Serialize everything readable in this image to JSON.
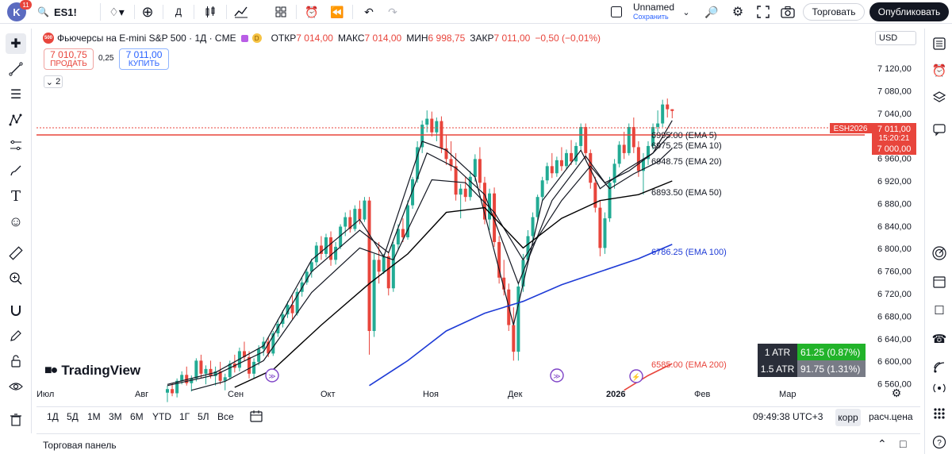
{
  "topbar": {
    "avatar_letter": "K",
    "avatar_badge": "11",
    "symbol": "ES1!",
    "interval": "Д",
    "unnamed": "Unnamed",
    "save": "Сохранить",
    "trade": "Торговать",
    "publish": "Опубликовать"
  },
  "legend": {
    "logo": "500",
    "title": "Фьючерсы на E-mini S&P 500 · 1Д · CME",
    "badge": "D",
    "open_label": "ОТКР",
    "open": "7 014,00",
    "high_label": "МАКС",
    "high": "7 014,00",
    "low_label": "МИН",
    "low": "6 998,75",
    "close_label": "ЗАКР",
    "close": "7 011,00",
    "change": "−0,50 (−0,01%)"
  },
  "order": {
    "sell_price": "7 010,75",
    "sell_label": "ПРОДАТЬ",
    "spread": "0,25",
    "buy_price": "7 011,00",
    "buy_label": "КУПИТЬ"
  },
  "collapse_count": "2",
  "currency": "USD",
  "price_axis": [
    "7 120,00",
    "7 080,00",
    "7 040,00",
    "7 000,00",
    "6 960,00",
    "6 920,00",
    "6 880,00",
    "6 840,00",
    "6 800,00",
    "6 760,00",
    "6 720,00",
    "6 680,00",
    "6 640,00",
    "6 600,00",
    "6 560,00"
  ],
  "time_axis": [
    "Июл",
    "Авг",
    "Сен",
    "Окт",
    "Ноя",
    "Дек",
    "2026",
    "Фев",
    "Мар"
  ],
  "price_tag": {
    "symbol": "ESH2026",
    "price": "7 011,00",
    "countdown": "15:20:21",
    "line_price": "7 000,00"
  },
  "ema_labels": [
    {
      "text": "6995.00 (EMA 5)",
      "color": "#131722"
    },
    {
      "text": "6975.25 (EMA 10)",
      "color": "#131722"
    },
    {
      "text": "6948.75 (EMA 20)",
      "color": "#131722"
    },
    {
      "text": "6893.50 (EMA 50)",
      "color": "#131722"
    },
    {
      "text": "6786.25 (EMA 100)",
      "color": "#1e3bd6"
    },
    {
      "text": "6585.00 (EMA 200)",
      "color": "#e8453c"
    }
  ],
  "atr": [
    {
      "label": "1 ATR",
      "value": "61.25 (0.87%)",
      "bg": "#22b32a"
    },
    {
      "label": "1.5 ATR",
      "value": "91.75 (1.31%)",
      "bg": "#787b86"
    }
  ],
  "brand": "TradingView",
  "timeframes": [
    "1Д",
    "5Д",
    "1М",
    "3М",
    "6М",
    "YTD",
    "1Г",
    "5Л",
    "Все"
  ],
  "clock": "09:49:38 UTC+3",
  "korr": "корр",
  "scale_mode": "расч.цена",
  "panel_title": "Торговая панель",
  "colors": {
    "up": "#22ab94",
    "down": "#e8453c",
    "ema100": "#1e3bd6",
    "ema200": "#e8453c"
  },
  "chart_data": {
    "type": "candlestick",
    "y_range": [
      6545,
      7150
    ],
    "candles": [
      {
        "o": 6536,
        "h": 6548,
        "l": 6520,
        "c": 6542
      },
      {
        "o": 6542,
        "h": 6552,
        "l": 6530,
        "c": 6535
      },
      {
        "o": 6535,
        "h": 6560,
        "l": 6528,
        "c": 6556
      },
      {
        "o": 6556,
        "h": 6572,
        "l": 6550,
        "c": 6566
      },
      {
        "o": 6566,
        "h": 6580,
        "l": 6548,
        "c": 6552
      },
      {
        "o": 6552,
        "h": 6565,
        "l": 6538,
        "c": 6560
      },
      {
        "o": 6560,
        "h": 6594,
        "l": 6555,
        "c": 6590
      },
      {
        "o": 6590,
        "h": 6600,
        "l": 6560,
        "c": 6568
      },
      {
        "o": 6568,
        "h": 6582,
        "l": 6550,
        "c": 6576
      },
      {
        "o": 6576,
        "h": 6590,
        "l": 6560,
        "c": 6564
      },
      {
        "o": 6564,
        "h": 6580,
        "l": 6548,
        "c": 6572
      },
      {
        "o": 6572,
        "h": 6588,
        "l": 6550,
        "c": 6556
      },
      {
        "o": 6556,
        "h": 6568,
        "l": 6540,
        "c": 6562
      },
      {
        "o": 6562,
        "h": 6590,
        "l": 6558,
        "c": 6585
      },
      {
        "o": 6585,
        "h": 6600,
        "l": 6570,
        "c": 6578
      },
      {
        "o": 6578,
        "h": 6612,
        "l": 6572,
        "c": 6606
      },
      {
        "o": 6606,
        "h": 6622,
        "l": 6590,
        "c": 6596
      },
      {
        "o": 6596,
        "h": 6606,
        "l": 6560,
        "c": 6568
      },
      {
        "o": 6568,
        "h": 6594,
        "l": 6560,
        "c": 6588
      },
      {
        "o": 6588,
        "h": 6616,
        "l": 6582,
        "c": 6610
      },
      {
        "o": 6610,
        "h": 6630,
        "l": 6598,
        "c": 6622
      },
      {
        "o": 6622,
        "h": 6630,
        "l": 6596,
        "c": 6602
      },
      {
        "o": 6602,
        "h": 6640,
        "l": 6598,
        "c": 6636
      },
      {
        "o": 6636,
        "h": 6660,
        "l": 6630,
        "c": 6652
      },
      {
        "o": 6652,
        "h": 6675,
        "l": 6646,
        "c": 6668
      },
      {
        "o": 6668,
        "h": 6690,
        "l": 6662,
        "c": 6684
      },
      {
        "o": 6684,
        "h": 6700,
        "l": 6660,
        "c": 6670
      },
      {
        "o": 6670,
        "h": 6712,
        "l": 6666,
        "c": 6706
      },
      {
        "o": 6706,
        "h": 6730,
        "l": 6698,
        "c": 6722
      },
      {
        "o": 6722,
        "h": 6746,
        "l": 6718,
        "c": 6740
      },
      {
        "o": 6740,
        "h": 6762,
        "l": 6730,
        "c": 6756
      },
      {
        "o": 6756,
        "h": 6790,
        "l": 6750,
        "c": 6784
      },
      {
        "o": 6784,
        "h": 6800,
        "l": 6760,
        "c": 6770
      },
      {
        "o": 6770,
        "h": 6804,
        "l": 6764,
        "c": 6798
      },
      {
        "o": 6798,
        "h": 6808,
        "l": 6750,
        "c": 6760
      },
      {
        "o": 6760,
        "h": 6790,
        "l": 6752,
        "c": 6782
      },
      {
        "o": 6782,
        "h": 6820,
        "l": 6778,
        "c": 6816
      },
      {
        "o": 6816,
        "h": 6840,
        "l": 6800,
        "c": 6832
      },
      {
        "o": 6832,
        "h": 6844,
        "l": 6806,
        "c": 6812
      },
      {
        "o": 6812,
        "h": 6852,
        "l": 6808,
        "c": 6846
      },
      {
        "o": 6846,
        "h": 6860,
        "l": 6820,
        "c": 6828
      },
      {
        "o": 6828,
        "h": 6866,
        "l": 6824,
        "c": 6860
      },
      {
        "o": 6860,
        "h": 6866,
        "l": 6600,
        "c": 6640
      },
      {
        "o": 6640,
        "h": 6770,
        "l": 6630,
        "c": 6760
      },
      {
        "o": 6760,
        "h": 6790,
        "l": 6720,
        "c": 6740
      },
      {
        "o": 6740,
        "h": 6770,
        "l": 6736,
        "c": 6766
      },
      {
        "o": 6766,
        "h": 6774,
        "l": 6700,
        "c": 6712
      },
      {
        "o": 6712,
        "h": 6790,
        "l": 6706,
        "c": 6786
      },
      {
        "o": 6786,
        "h": 6820,
        "l": 6776,
        "c": 6812
      },
      {
        "o": 6812,
        "h": 6830,
        "l": 6790,
        "c": 6798
      },
      {
        "o": 6798,
        "h": 6860,
        "l": 6794,
        "c": 6852
      },
      {
        "o": 6852,
        "h": 6900,
        "l": 6846,
        "c": 6896
      },
      {
        "o": 6896,
        "h": 6960,
        "l": 6890,
        "c": 6950
      },
      {
        "o": 6950,
        "h": 6995,
        "l": 6940,
        "c": 6988
      },
      {
        "o": 6988,
        "h": 7012,
        "l": 6975,
        "c": 6998
      },
      {
        "o": 6998,
        "h": 7010,
        "l": 6968,
        "c": 6975
      },
      {
        "o": 6975,
        "h": 7000,
        "l": 6960,
        "c": 6994
      },
      {
        "o": 6994,
        "h": 7002,
        "l": 6940,
        "c": 6948
      },
      {
        "o": 6948,
        "h": 6970,
        "l": 6920,
        "c": 6930
      },
      {
        "o": 6930,
        "h": 6960,
        "l": 6910,
        "c": 6918
      },
      {
        "o": 6918,
        "h": 6940,
        "l": 6860,
        "c": 6870
      },
      {
        "o": 6870,
        "h": 6888,
        "l": 6830,
        "c": 6880
      },
      {
        "o": 6880,
        "h": 6900,
        "l": 6858,
        "c": 6866
      },
      {
        "o": 6866,
        "h": 6910,
        "l": 6860,
        "c": 6900
      },
      {
        "o": 6900,
        "h": 6938,
        "l": 6892,
        "c": 6930
      },
      {
        "o": 6930,
        "h": 6950,
        "l": 6880,
        "c": 6890
      },
      {
        "o": 6890,
        "h": 6900,
        "l": 6820,
        "c": 6828
      },
      {
        "o": 6828,
        "h": 6880,
        "l": 6810,
        "c": 6872
      },
      {
        "o": 6872,
        "h": 6882,
        "l": 6782,
        "c": 6790
      },
      {
        "o": 6790,
        "h": 6800,
        "l": 6720,
        "c": 6730
      },
      {
        "o": 6730,
        "h": 6760,
        "l": 6700,
        "c": 6710
      },
      {
        "o": 6710,
        "h": 6720,
        "l": 6640,
        "c": 6650
      },
      {
        "o": 6650,
        "h": 6680,
        "l": 6590,
        "c": 6605
      },
      {
        "o": 6605,
        "h": 6720,
        "l": 6590,
        "c": 6715
      },
      {
        "o": 6715,
        "h": 6770,
        "l": 6706,
        "c": 6760
      },
      {
        "o": 6760,
        "h": 6810,
        "l": 6752,
        "c": 6800
      },
      {
        "o": 6800,
        "h": 6840,
        "l": 6790,
        "c": 6832
      },
      {
        "o": 6832,
        "h": 6870,
        "l": 6826,
        "c": 6866
      },
      {
        "o": 6866,
        "h": 6900,
        "l": 6860,
        "c": 6894
      },
      {
        "o": 6894,
        "h": 6924,
        "l": 6888,
        "c": 6918
      },
      {
        "o": 6918,
        "h": 6940,
        "l": 6898,
        "c": 6906
      },
      {
        "o": 6906,
        "h": 6934,
        "l": 6900,
        "c": 6928
      },
      {
        "o": 6928,
        "h": 6950,
        "l": 6910,
        "c": 6918
      },
      {
        "o": 6918,
        "h": 6946,
        "l": 6912,
        "c": 6940
      },
      {
        "o": 6940,
        "h": 6962,
        "l": 6920,
        "c": 6926
      },
      {
        "o": 6926,
        "h": 6958,
        "l": 6920,
        "c": 6952
      },
      {
        "o": 6952,
        "h": 6990,
        "l": 6946,
        "c": 6984
      },
      {
        "o": 6984,
        "h": 6990,
        "l": 6930,
        "c": 6940
      },
      {
        "o": 6940,
        "h": 6946,
        "l": 6880,
        "c": 6890
      },
      {
        "o": 6890,
        "h": 6900,
        "l": 6840,
        "c": 6848
      },
      {
        "o": 6848,
        "h": 6860,
        "l": 6766,
        "c": 6780
      },
      {
        "o": 6780,
        "h": 6840,
        "l": 6770,
        "c": 6830
      },
      {
        "o": 6830,
        "h": 6900,
        "l": 6824,
        "c": 6890
      },
      {
        "o": 6890,
        "h": 6930,
        "l": 6880,
        "c": 6922
      },
      {
        "o": 6922,
        "h": 6960,
        "l": 6916,
        "c": 6954
      },
      {
        "o": 6954,
        "h": 6976,
        "l": 6930,
        "c": 6940
      },
      {
        "o": 6940,
        "h": 6990,
        "l": 6936,
        "c": 6984
      },
      {
        "o": 6984,
        "h": 7000,
        "l": 6940,
        "c": 6950
      },
      {
        "o": 6950,
        "h": 6960,
        "l": 6900,
        "c": 6910
      },
      {
        "o": 6910,
        "h": 6940,
        "l": 6870,
        "c": 6930
      },
      {
        "o": 6930,
        "h": 6960,
        "l": 6920,
        "c": 6952
      },
      {
        "o": 6952,
        "h": 6990,
        "l": 6946,
        "c": 6984
      },
      {
        "o": 6984,
        "h": 7012,
        "l": 6976,
        "c": 6990
      },
      {
        "o": 6990,
        "h": 7030,
        "l": 6984,
        "c": 7022
      },
      {
        "o": 7022,
        "h": 7032,
        "l": 7000,
        "c": 7014
      },
      {
        "o": 7014,
        "h": 7014,
        "l": 6998.75,
        "c": 7011
      }
    ],
    "ema_series": [
      {
        "label": "EMA 5",
        "color": "#131722",
        "width": 1.2,
        "points": [
          [
            0,
            6550
          ],
          [
            10,
            6570
          ],
          [
            20,
            6615
          ],
          [
            30,
            6760
          ],
          [
            40,
            6828
          ],
          [
            45,
            6765
          ],
          [
            53,
            6960
          ],
          [
            58,
            6945
          ],
          [
            64,
            6900
          ],
          [
            72,
            6650
          ],
          [
            78,
            6860
          ],
          [
            86,
            6945
          ],
          [
            90,
            6880
          ],
          [
            95,
            6910
          ],
          [
            101,
            6940
          ],
          [
            105,
            6995
          ]
        ]
      },
      {
        "label": "EMA 10",
        "color": "#131722",
        "width": 1.2,
        "points": [
          [
            0,
            6548
          ],
          [
            10,
            6566
          ],
          [
            20,
            6605
          ],
          [
            30,
            6740
          ],
          [
            40,
            6810
          ],
          [
            46,
            6772
          ],
          [
            54,
            6940
          ],
          [
            60,
            6915
          ],
          [
            66,
            6870
          ],
          [
            73,
            6720
          ],
          [
            80,
            6860
          ],
          [
            87,
            6935
          ],
          [
            91,
            6890
          ],
          [
            96,
            6910
          ],
          [
            101,
            6940
          ],
          [
            105,
            6975
          ]
        ]
      },
      {
        "label": "EMA 20",
        "color": "#131722",
        "width": 1.2,
        "points": [
          [
            5,
            6540
          ],
          [
            12,
            6555
          ],
          [
            20,
            6590
          ],
          [
            30,
            6705
          ],
          [
            40,
            6780
          ],
          [
            47,
            6760
          ],
          [
            55,
            6895
          ],
          [
            62,
            6890
          ],
          [
            68,
            6840
          ],
          [
            74,
            6760
          ],
          [
            82,
            6860
          ],
          [
            88,
            6918
          ],
          [
            92,
            6880
          ],
          [
            97,
            6905
          ],
          [
            102,
            6925
          ],
          [
            105,
            6948
          ]
        ]
      },
      {
        "label": "EMA 50",
        "color": "#000000",
        "width": 1.4,
        "points": [
          [
            14,
            6545
          ],
          [
            22,
            6575
          ],
          [
            32,
            6650
          ],
          [
            42,
            6720
          ],
          [
            50,
            6770
          ],
          [
            58,
            6840
          ],
          [
            66,
            6848
          ],
          [
            74,
            6780
          ],
          [
            82,
            6830
          ],
          [
            90,
            6860
          ],
          [
            98,
            6870
          ],
          [
            105,
            6893
          ]
        ]
      },
      {
        "label": "EMA 100",
        "color": "#1e3bd6",
        "width": 1.6,
        "points": [
          [
            42,
            6548
          ],
          [
            50,
            6590
          ],
          [
            58,
            6640
          ],
          [
            66,
            6670
          ],
          [
            74,
            6690
          ],
          [
            82,
            6718
          ],
          [
            90,
            6740
          ],
          [
            98,
            6762
          ],
          [
            105,
            6786
          ]
        ]
      },
      {
        "label": "EMA 200",
        "color": "#e8453c",
        "width": 1.6,
        "points": [
          [
            95,
            6540
          ],
          [
            100,
            6565
          ],
          [
            105,
            6585
          ]
        ]
      }
    ]
  }
}
